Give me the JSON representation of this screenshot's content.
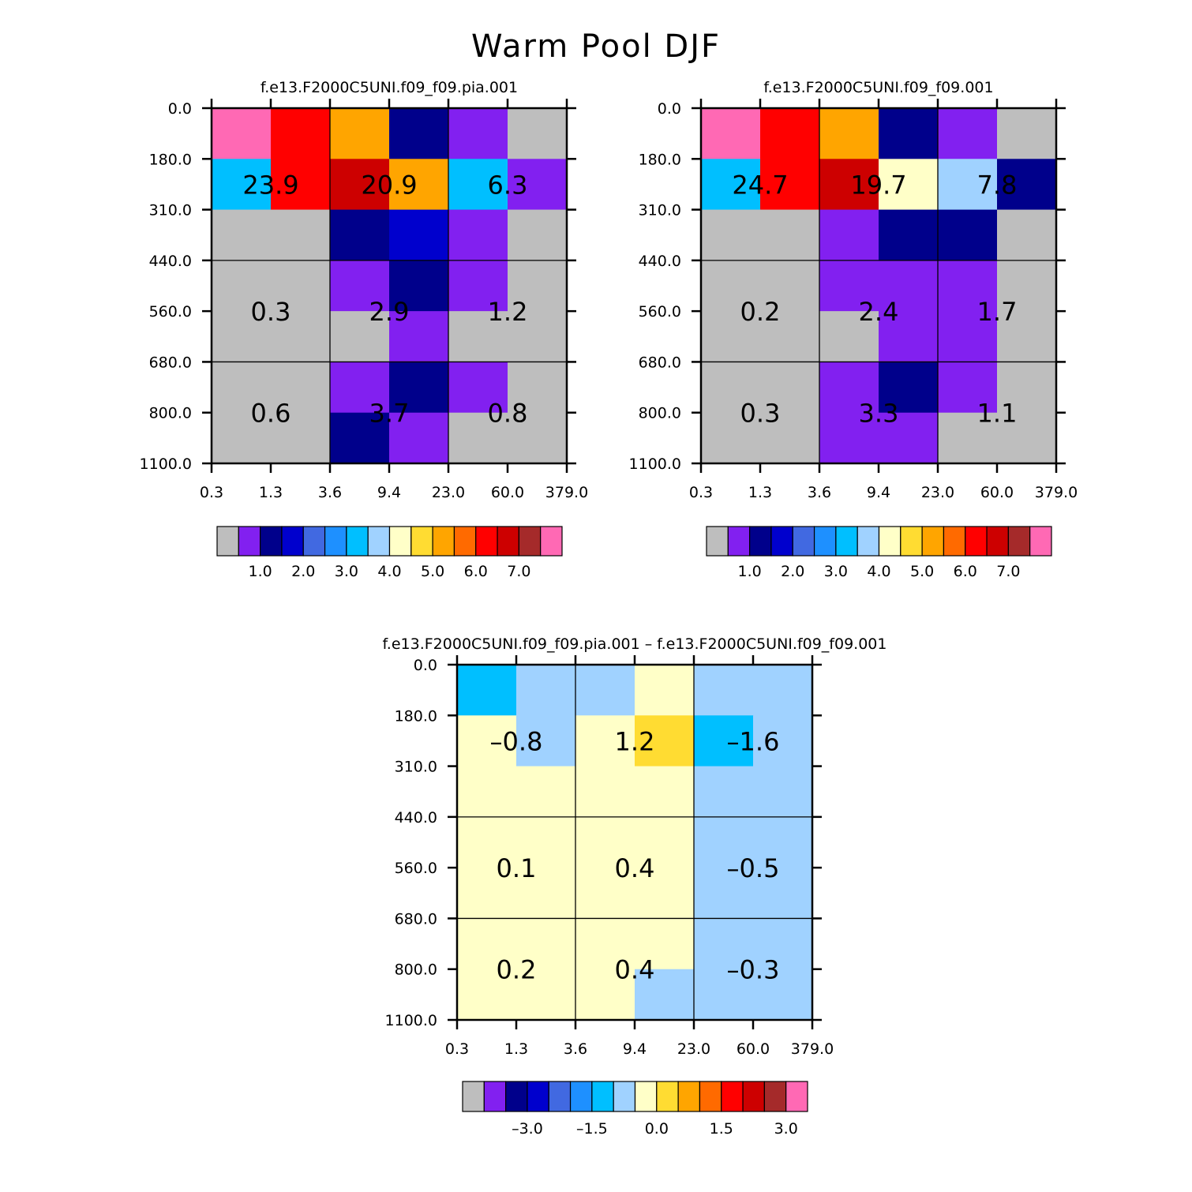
{
  "title": "Warm Pool DJF",
  "chart_data": [
    {
      "type": "heatmap",
      "title": "f.e13.F2000C5UNI.f09_f09.pia.001",
      "x_ticks": [
        "0.3",
        "1.3",
        "3.6",
        "9.4",
        "23.0",
        "60.0",
        "379.0"
      ],
      "y_ticks": [
        "0.0",
        "180.0",
        "310.0",
        "440.0",
        "560.0",
        "680.0",
        "800.0",
        "1100.0"
      ],
      "cells": [
        [
          15,
          12,
          10,
          2,
          1,
          0
        ],
        [
          6,
          12,
          13,
          10,
          6,
          1
        ],
        [
          0,
          0,
          2,
          3,
          1,
          0
        ],
        [
          0,
          0,
          1,
          2,
          1,
          0
        ],
        [
          0,
          0,
          0,
          1,
          0,
          0
        ],
        [
          0,
          0,
          1,
          2,
          1,
          0
        ],
        [
          0,
          0,
          2,
          1,
          0,
          0
        ]
      ],
      "group_labels": [
        [
          "23.9",
          "20.9",
          "6.3"
        ],
        [
          "0.3",
          "2.9",
          "1.2"
        ],
        [
          "0.6",
          "3.7",
          "0.8"
        ]
      ],
      "colorbar_labels": [
        "1.0",
        "2.0",
        "3.0",
        "4.0",
        "5.0",
        "6.0",
        "7.0"
      ],
      "colorbar_label_index": [
        1,
        3,
        5,
        7,
        9,
        11,
        13
      ]
    },
    {
      "type": "heatmap",
      "title": "f.e13.F2000C5UNI.f09_f09.001",
      "x_ticks": [
        "0.3",
        "1.3",
        "3.6",
        "9.4",
        "23.0",
        "60.0",
        "379.0"
      ],
      "y_ticks": [
        "0.0",
        "180.0",
        "310.0",
        "440.0",
        "560.0",
        "680.0",
        "800.0",
        "1100.0"
      ],
      "cells": [
        [
          15,
          12,
          10,
          2,
          1,
          0
        ],
        [
          6,
          12,
          13,
          8,
          7,
          2
        ],
        [
          0,
          0,
          1,
          2,
          2,
          0
        ],
        [
          0,
          0,
          1,
          1,
          1,
          0
        ],
        [
          0,
          0,
          0,
          1,
          1,
          0
        ],
        [
          0,
          0,
          1,
          2,
          1,
          0
        ],
        [
          0,
          0,
          1,
          1,
          0,
          0
        ]
      ],
      "group_labels": [
        [
          "24.7",
          "19.7",
          "7.8"
        ],
        [
          "0.2",
          "2.4",
          "1.7"
        ],
        [
          "0.3",
          "3.3",
          "1.1"
        ]
      ],
      "colorbar_labels": [
        "1.0",
        "2.0",
        "3.0",
        "4.0",
        "5.0",
        "6.0",
        "7.0"
      ],
      "colorbar_label_index": [
        1,
        3,
        5,
        7,
        9,
        11,
        13
      ]
    },
    {
      "type": "heatmap",
      "title": "f.e13.F2000C5UNI.f09_f09.pia.001 – f.e13.F2000C5UNI.f09_f09.001",
      "x_ticks": [
        "0.3",
        "1.3",
        "3.6",
        "9.4",
        "23.0",
        "60.0",
        "379.0"
      ],
      "y_ticks": [
        "0.0",
        "180.0",
        "310.0",
        "440.0",
        "560.0",
        "680.0",
        "800.0",
        "1100.0"
      ],
      "cells": [
        [
          6,
          7,
          7,
          8,
          7,
          7
        ],
        [
          8,
          7,
          8,
          9,
          6,
          7
        ],
        [
          8,
          8,
          8,
          8,
          7,
          7
        ],
        [
          8,
          8,
          8,
          8,
          7,
          7
        ],
        [
          8,
          8,
          8,
          8,
          7,
          7
        ],
        [
          8,
          8,
          8,
          8,
          7,
          7
        ],
        [
          8,
          8,
          8,
          7,
          7,
          7
        ]
      ],
      "group_labels": [
        [
          "–0.8",
          "1.2",
          "–1.6"
        ],
        [
          "0.1",
          "0.4",
          "–0.5"
        ],
        [
          "0.2",
          "0.4",
          "–0.3"
        ]
      ],
      "colorbar_labels": [
        "–3.0",
        "–1.5",
        "0.0",
        "1.5",
        "3.0"
      ],
      "colorbar_label_index": [
        2,
        5,
        8,
        11,
        14
      ]
    }
  ],
  "palette": [
    "#bebebe",
    "#8220f0",
    "#00008b",
    "#0000cd",
    "#4169e1",
    "#1e90ff",
    "#00bfff",
    "#a0d2ff",
    "#ffffc8",
    "#ffdc32",
    "#ffa500",
    "#ff6a00",
    "#ff0000",
    "#cd0000",
    "#a52a2a",
    "#ff69b4"
  ]
}
